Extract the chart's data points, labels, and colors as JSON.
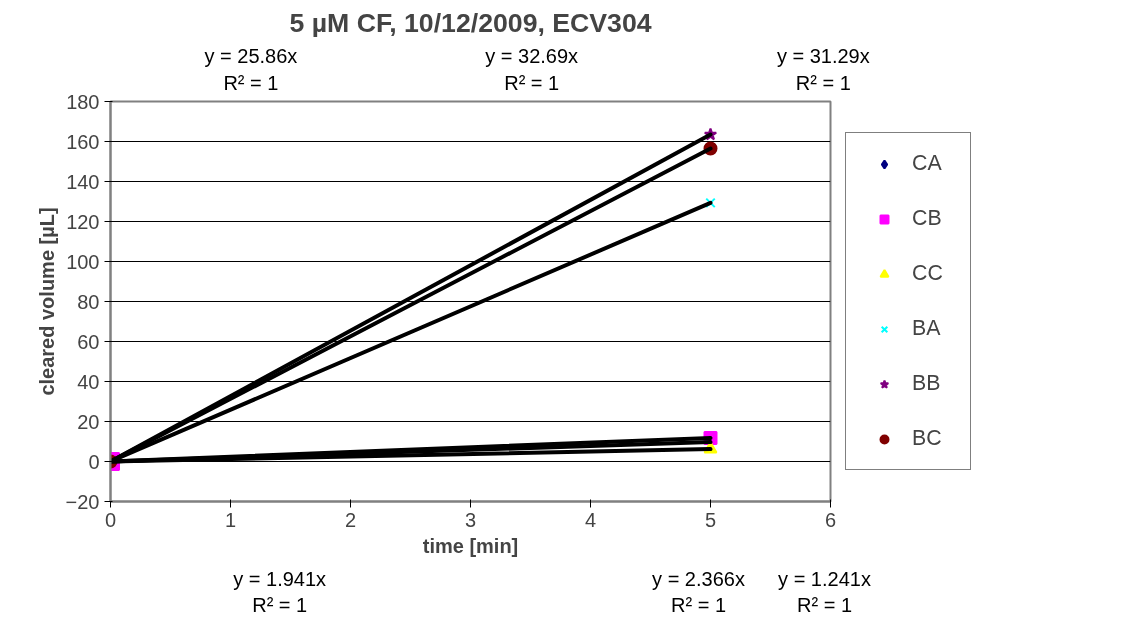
{
  "chart_data": {
    "type": "scatter",
    "title": "5 µM CF, 10/12/2009, ECV304",
    "xlabel": "time [min]",
    "ylabel": "cleared volume [µL]",
    "x": [
      0,
      5
    ],
    "series": [
      {
        "name": "CA",
        "color": "#000080",
        "marker": "diamond",
        "values": [
          null,
          null
        ]
      },
      {
        "name": "CB",
        "color": "#ff00ff",
        "marker": "square",
        "values": [
          0,
          11.8
        ]
      },
      {
        "name": "CC",
        "color": "#ffff00",
        "marker": "triangle",
        "values": [
          null,
          6.2
        ]
      },
      {
        "name": "BA",
        "color": "#00ffff",
        "marker": "cross",
        "values": [
          null,
          129.3
        ]
      },
      {
        "name": "BB",
        "color": "#800080",
        "marker": "star",
        "values": [
          null,
          163.5
        ]
      },
      {
        "name": "BC",
        "color": "#800000",
        "marker": "circle",
        "values": [
          0,
          156.5
        ]
      },
      {
        "type": "line",
        "color": "#000000",
        "values": [
          0,
          9.7
        ]
      },
      {
        "type": "line",
        "color": "#000000",
        "values": [
          0,
          11.8
        ]
      },
      {
        "type": "line",
        "color": "#000000",
        "values": [
          0,
          6.2
        ]
      },
      {
        "type": "line",
        "color": "#000000",
        "values": [
          0,
          129.3
        ]
      },
      {
        "type": "line",
        "color": "#000000",
        "values": [
          0,
          163.5
        ]
      },
      {
        "type": "line",
        "color": "#000000",
        "values": [
          0,
          156.5
        ]
      }
    ],
    "annotations": [
      "y = 25.86x\nR² = 1",
      "y = 32.69x\nR² = 1",
      "y = 31.29x\nR² = 1",
      "y = 1.941x\nR² = 1",
      "y = 2.366x\nR² = 1",
      "y = 1.241x\nR² = 1"
    ],
    "xlim": [
      0,
      6
    ],
    "xticks": [
      0,
      1,
      2,
      3,
      4,
      5,
      6
    ],
    "ylim": [
      -20,
      180
    ],
    "yticks": [
      -20,
      0,
      20,
      40,
      60,
      80,
      100,
      120,
      140,
      160,
      180
    ],
    "grid": "y",
    "legend": "right"
  }
}
